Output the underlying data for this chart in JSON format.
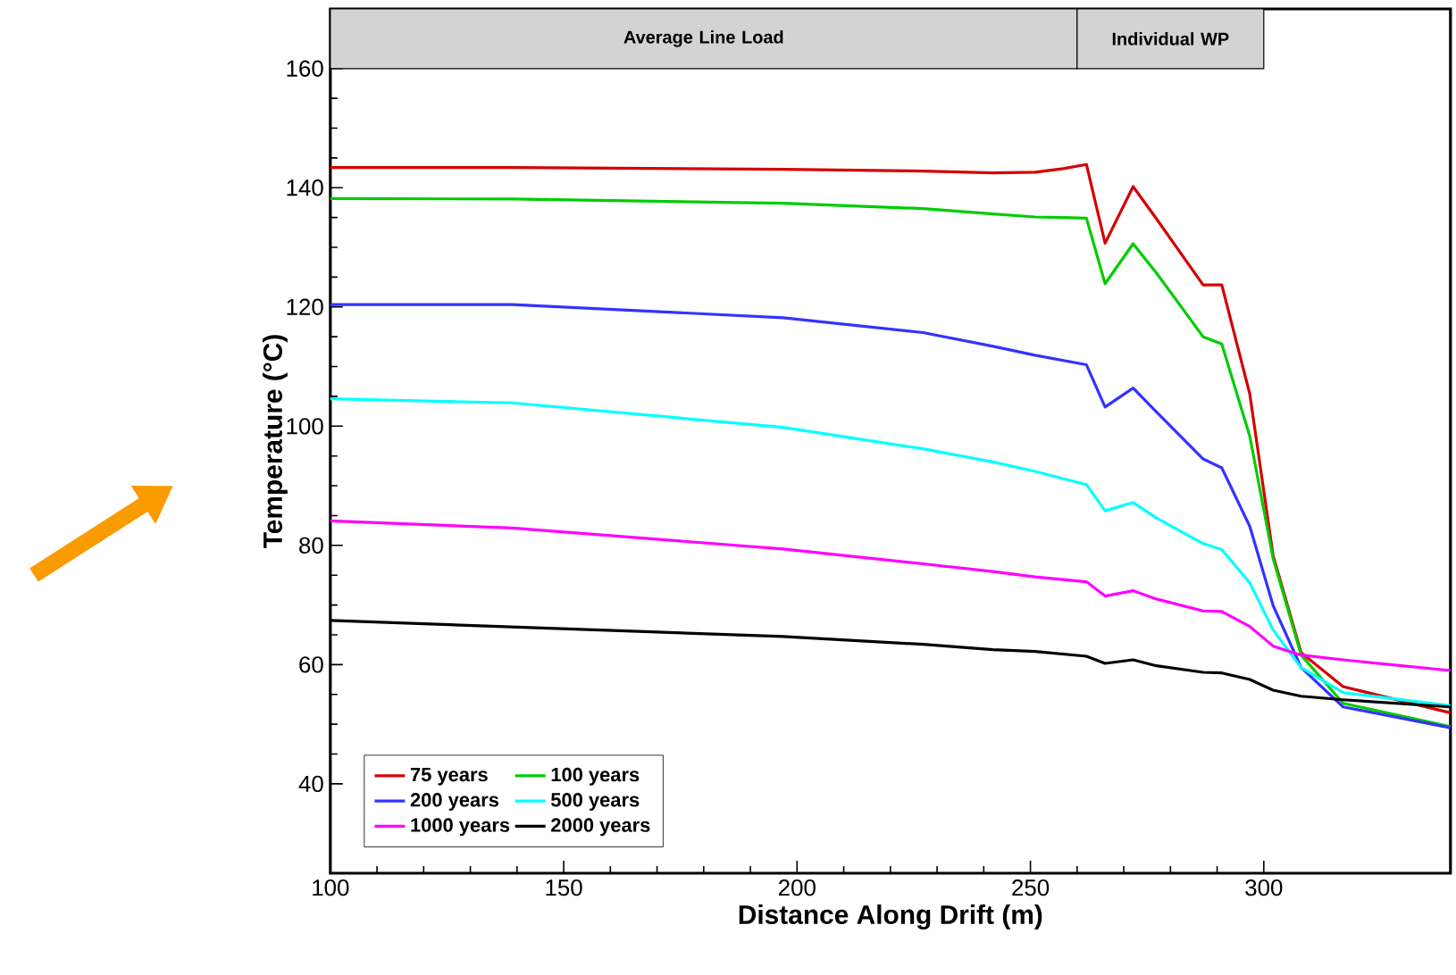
{
  "chart_data": {
    "type": "line",
    "xlabel": "Distance Along Drift  (m)",
    "ylabel": "Temperature  (°C)",
    "xlim": [
      100,
      340
    ],
    "ylim": [
      25,
      170
    ],
    "xticks": [
      100,
      150,
      200,
      250,
      300
    ],
    "yticks": [
      40,
      60,
      80,
      100,
      120,
      140,
      160
    ],
    "grid": false,
    "legend": "bottom left",
    "marker": "none",
    "line_style": "solid",
    "bands": [
      {
        "axis": "x",
        "from": 100,
        "to": 260,
        "label": "Average Line Load",
        "color": "#d3d3d3"
      },
      {
        "axis": "x",
        "from": 260,
        "to": 300,
        "label": "Individual WP",
        "color": "#d3d3d3"
      }
    ],
    "series": [
      {
        "name": "75 years",
        "color": "#d40000",
        "x": [
          100,
          139,
          197,
          227,
          242,
          251,
          257,
          262,
          266,
          272,
          277,
          287,
          291,
          297,
          302,
          308,
          317,
          340
        ],
        "values": [
          143.4,
          143.4,
          143.1,
          142.8,
          142.5,
          142.6,
          143.2,
          143.9,
          130.7,
          140.2,
          134.8,
          123.7,
          123.7,
          105.4,
          78.3,
          62.0,
          56.3,
          51.9
        ]
      },
      {
        "name": "100 years",
        "color": "#00cc00",
        "x": [
          100,
          139,
          197,
          227,
          242,
          251,
          257,
          262,
          266,
          272,
          277,
          287,
          291,
          297,
          302,
          308,
          317,
          340
        ],
        "values": [
          138.2,
          138.1,
          137.4,
          136.5,
          135.6,
          135.1,
          135.0,
          134.9,
          123.9,
          130.6,
          125.7,
          115.0,
          113.8,
          98.3,
          77.8,
          61.6,
          53.5,
          49.6
        ]
      },
      {
        "name": "200 years",
        "color": "#3333ff",
        "x": [
          100,
          139,
          197,
          227,
          242,
          251,
          262,
          266,
          272,
          277,
          287,
          291,
          297,
          302,
          308,
          317,
          340
        ],
        "values": [
          120.4,
          120.4,
          118.2,
          115.7,
          113.4,
          111.9,
          110.3,
          103.2,
          106.4,
          102.4,
          94.5,
          93.0,
          83.2,
          69.9,
          59.5,
          52.9,
          49.4
        ]
      },
      {
        "name": "500 years",
        "color": "#00ffff",
        "x": [
          100,
          139,
          197,
          227,
          242,
          251,
          262,
          266,
          272,
          277,
          287,
          291,
          297,
          302,
          308,
          317,
          340
        ],
        "values": [
          104.6,
          103.9,
          99.8,
          96.2,
          94.0,
          92.4,
          90.2,
          85.8,
          87.2,
          84.6,
          80.3,
          79.3,
          73.7,
          65.8,
          59.5,
          55.3,
          53.1
        ]
      },
      {
        "name": "1000 years",
        "color": "#ff00ff",
        "x": [
          100,
          139,
          197,
          227,
          242,
          251,
          262,
          266,
          272,
          277,
          287,
          291,
          297,
          302,
          308,
          317,
          340
        ],
        "values": [
          84.1,
          82.9,
          79.4,
          76.9,
          75.6,
          74.7,
          73.9,
          71.5,
          72.4,
          71.0,
          69.0,
          68.9,
          66.4,
          63.1,
          61.6,
          60.8,
          59.0
        ]
      },
      {
        "name": "2000 years",
        "color": "#000000",
        "x": [
          100,
          197,
          227,
          242,
          251,
          262,
          266,
          272,
          277,
          287,
          291,
          297,
          302,
          308,
          317,
          340
        ],
        "values": [
          67.4,
          64.7,
          63.4,
          62.5,
          62.2,
          61.4,
          60.2,
          60.8,
          59.8,
          58.7,
          58.6,
          57.5,
          55.7,
          54.7,
          54.1,
          52.9
        ]
      }
    ]
  }
}
